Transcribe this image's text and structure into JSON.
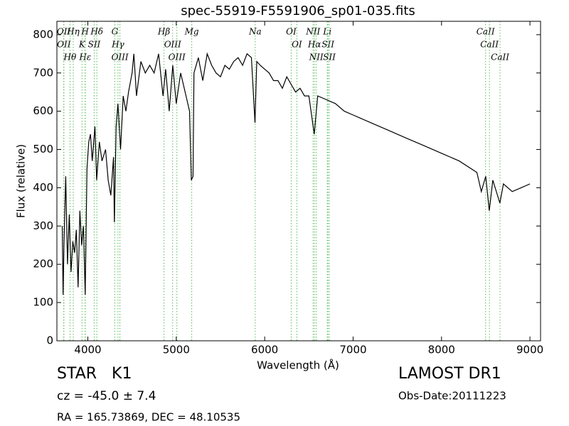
{
  "chart_data": {
    "type": "line",
    "title": "spec-55919-F5591906_sp01-035.fits",
    "xlabel": "Wavelength (Å)",
    "ylabel": "Flux (relative)",
    "xlim": [
      3650,
      9120
    ],
    "ylim": [
      0,
      835
    ],
    "xticks": [
      4000,
      5000,
      6000,
      7000,
      8000,
      9000
    ],
    "yticks": [
      0,
      100,
      200,
      300,
      400,
      500,
      600,
      700,
      800
    ],
    "color": "#000000",
    "line_color": "#55bb55",
    "x": [
      3710,
      3720,
      3730,
      3750,
      3770,
      3790,
      3810,
      3830,
      3850,
      3870,
      3890,
      3910,
      3930,
      3950,
      3970,
      3990,
      4010,
      4030,
      4050,
      4080,
      4100,
      4130,
      4160,
      4200,
      4230,
      4260,
      4290,
      4300,
      4320,
      4340,
      4370,
      4400,
      4430,
      4460,
      4500,
      4520,
      4550,
      4600,
      4650,
      4700,
      4750,
      4800,
      4850,
      4880,
      4920,
      4960,
      5000,
      5050,
      5100,
      5150,
      5170,
      5190,
      5200,
      5250,
      5300,
      5350,
      5400,
      5450,
      5500,
      5550,
      5600,
      5650,
      5700,
      5750,
      5800,
      5850,
      5890,
      5910,
      5950,
      6000,
      6050,
      6100,
      6150,
      6200,
      6250,
      6300,
      6350,
      6400,
      6450,
      6500,
      6560,
      6600,
      6700,
      6800,
      6900,
      7000,
      7200,
      7400,
      7600,
      7800,
      8000,
      8200,
      8400,
      8450,
      8500,
      8540,
      8580,
      8660,
      8700,
      8800,
      8900,
      9000
    ],
    "values": [
      300,
      120,
      250,
      430,
      200,
      330,
      180,
      260,
      230,
      290,
      140,
      340,
      250,
      300,
      120,
      450,
      520,
      540,
      470,
      560,
      420,
      520,
      470,
      500,
      420,
      380,
      480,
      310,
      560,
      620,
      500,
      640,
      600,
      650,
      700,
      750,
      640,
      730,
      700,
      720,
      700,
      750,
      640,
      710,
      600,
      720,
      620,
      700,
      650,
      600,
      420,
      430,
      700,
      740,
      680,
      750,
      720,
      700,
      690,
      720,
      710,
      730,
      740,
      720,
      750,
      740,
      570,
      730,
      720,
      710,
      700,
      680,
      680,
      660,
      690,
      670,
      650,
      660,
      640,
      640,
      540,
      640,
      630,
      620,
      600,
      590,
      570,
      550,
      530,
      510,
      490,
      470,
      440,
      390,
      430,
      340,
      420,
      360,
      410,
      390,
      400,
      410
    ],
    "lines": [
      {
        "label": "OII",
        "wavelength": 3727
      },
      {
        "label": "OII",
        "wavelength": 3729
      },
      {
        "label": "Hθ",
        "wavelength": 3798
      },
      {
        "label": "Hη",
        "wavelength": 3835
      },
      {
        "label": "K",
        "wavelength": 3934
      },
      {
        "label": "Hε",
        "wavelength": 3970
      },
      {
        "label": "H",
        "wavelength": 3969
      },
      {
        "label": "SII",
        "wavelength": 4072
      },
      {
        "label": "Hδ",
        "wavelength": 4102
      },
      {
        "label": "G",
        "wavelength": 4305
      },
      {
        "label": "Hγ",
        "wavelength": 4341
      },
      {
        "label": "OIII",
        "wavelength": 4363
      },
      {
        "label": "Hβ",
        "wavelength": 4861
      },
      {
        "label": "OIII",
        "wavelength": 4959
      },
      {
        "label": "OIII",
        "wavelength": 5007
      },
      {
        "label": "Mg",
        "wavelength": 5175
      },
      {
        "label": "Na",
        "wavelength": 5893
      },
      {
        "label": "OI",
        "wavelength": 6300
      },
      {
        "label": "OI",
        "wavelength": 6364
      },
      {
        "label": "NII",
        "wavelength": 6548
      },
      {
        "label": "Hα",
        "wavelength": 6563
      },
      {
        "label": "NII",
        "wavelength": 6583
      },
      {
        "label": "Li",
        "wavelength": 6708
      },
      {
        "label": "SII",
        "wavelength": 6716
      },
      {
        "label": "SII",
        "wavelength": 6731
      },
      {
        "label": "CaII",
        "wavelength": 8498
      },
      {
        "label": "CaII",
        "wavelength": 8542
      },
      {
        "label": "CaII",
        "wavelength": 8662
      }
    ],
    "class": "STAR   K1",
    "survey": "LAMOST DR1",
    "cz": "cz = -45.0 ± 7.4",
    "obs_date": "Obs-Date:20111223",
    "coords": "RA = 165.73869, DEC = 48.10535"
  }
}
